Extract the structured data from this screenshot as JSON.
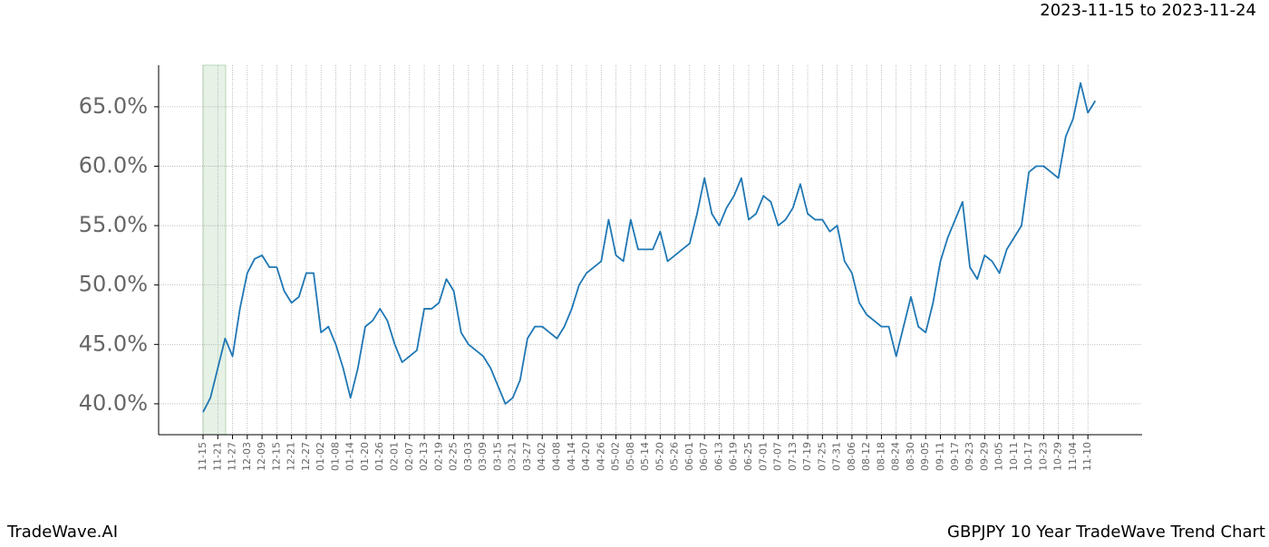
{
  "chart_data": {
    "type": "line",
    "title": "2023-11-15 to 2023-11-24",
    "footer_left": "TradeWave.AI",
    "footer_right": "GBPJPY 10 Year TradeWave Trend Chart",
    "color": "#1f77b4",
    "grid": true,
    "categories": [
      "11-15",
      null,
      "11-21",
      null,
      "11-27",
      null,
      "12-03",
      null,
      "12-09",
      null,
      "12-15",
      null,
      "12-21",
      null,
      "12-27",
      null,
      "01-02",
      null,
      "01-08",
      null,
      "01-14",
      null,
      "01-20",
      null,
      "01-26",
      null,
      "02-01",
      null,
      "02-07",
      null,
      "02-13",
      null,
      "02-19",
      null,
      "02-25",
      null,
      "03-03",
      null,
      "03-09",
      null,
      "03-15",
      null,
      "03-21",
      null,
      "03-27",
      null,
      "04-02",
      null,
      "04-08",
      null,
      "04-14",
      null,
      "04-20",
      null,
      "04-26",
      null,
      "05-02",
      null,
      "05-08",
      null,
      "05-14",
      null,
      "05-20",
      null,
      "05-26",
      null,
      "06-01",
      null,
      "06-07",
      null,
      "06-13",
      null,
      "06-19",
      null,
      "06-25",
      null,
      "07-01",
      null,
      "07-07",
      null,
      "07-13",
      null,
      "07-19",
      null,
      "07-25",
      null,
      "07-31",
      null,
      "08-06",
      null,
      "08-12",
      null,
      "08-18",
      null,
      "08-24",
      null,
      "08-30",
      null,
      "09-05",
      null,
      "09-11",
      null,
      "09-17",
      null,
      "09-23",
      null,
      "09-29",
      null,
      "10-05",
      null,
      "10-11",
      null,
      "10-17",
      null,
      "10-23",
      null,
      "10-29",
      null,
      "11-04",
      null,
      "11-10",
      null
    ],
    "values": [
      39.3,
      40.5,
      43.0,
      45.5,
      44.0,
      48.0,
      51.0,
      52.2,
      52.5,
      51.5,
      51.5,
      49.5,
      48.5,
      49.0,
      51.0,
      51.0,
      46.0,
      46.5,
      45.0,
      43.0,
      40.5,
      43.0,
      46.5,
      47.0,
      48.0,
      47.0,
      45.0,
      43.5,
      44.0,
      44.5,
      48.0,
      48.0,
      48.5,
      50.5,
      49.5,
      46.0,
      45.0,
      44.5,
      44.0,
      43.0,
      41.5,
      40.0,
      40.5,
      42.0,
      45.5,
      46.5,
      46.5,
      46.0,
      45.5,
      46.5,
      48.0,
      50.0,
      51.0,
      51.5,
      52.0,
      55.5,
      52.5,
      52.0,
      55.5,
      53.0,
      53.0,
      53.0,
      54.5,
      52.0,
      52.5,
      53.0,
      53.5,
      56.0,
      59.0,
      56.0,
      55.0,
      56.5,
      57.5,
      59.0,
      55.5,
      56.0,
      57.5,
      57.0,
      55.0,
      55.5,
      56.5,
      58.5,
      56.0,
      55.5,
      55.5,
      54.5,
      55.0,
      52.0,
      51.0,
      48.5,
      47.5,
      47.0,
      46.5,
      46.5,
      44.0,
      46.5,
      49.0,
      46.5,
      46.0,
      48.5,
      52.0,
      54.0,
      55.5,
      57.0,
      51.5,
      50.5,
      52.5,
      52.0,
      51.0,
      53.0,
      54.0,
      55.0,
      59.5,
      60.0,
      60.0,
      59.5,
      59.0,
      62.5,
      64.0,
      67.0,
      64.5,
      65.5
    ],
    "ylim": [
      37.4,
      68.5
    ],
    "yticks": [
      {
        "value": 40,
        "label": "40.0%"
      },
      {
        "value": 45,
        "label": "45.0%"
      },
      {
        "value": 50,
        "label": "50.0%"
      },
      {
        "value": 55,
        "label": "55.0%"
      },
      {
        "value": 60,
        "label": "60.0%"
      },
      {
        "value": 65,
        "label": "65.0%"
      }
    ]
  }
}
